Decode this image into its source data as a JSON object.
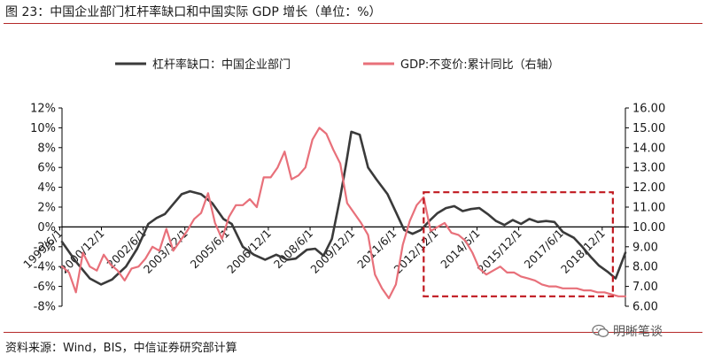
{
  "title": "图 23：中国企业部门杠杆率缺口和中国实际 GDP 增长（单位：%）",
  "source": "资料来源：Wind，BIS，中信证券研究部计算",
  "watermark": {
    "text": "明晰笔谈",
    "icon": "wechat-icon"
  },
  "colors": {
    "gap": "#3a3a3a",
    "gdp": "#e8707a",
    "rule": "#b52a2a",
    "box": "#c0181f"
  },
  "chart_data": {
    "type": "line",
    "title": "",
    "xlabel": "",
    "ylabel": "",
    "legend_position": "top",
    "x_ticks": [
      "1999/6/1",
      "2000/12/1",
      "2002/6/1",
      "2003/12/1",
      "2005/6/1",
      "2006/12/1",
      "2008/6/1",
      "2009/12/1",
      "2011/6/1",
      "2012/12/1",
      "2014/6/1",
      "2015/12/1",
      "2017/6/1",
      "2018/12/1"
    ],
    "x_range": [
      1999.5,
      2019.75
    ],
    "y_left": {
      "min": -8,
      "max": 12,
      "step": 2,
      "ticks": [
        "-8%",
        "-6%",
        "-4%",
        "-2%",
        "0%",
        "2%",
        "4%",
        "6%",
        "8%",
        "10%",
        "12%"
      ]
    },
    "y_right": {
      "min": 6,
      "max": 16,
      "step": 1,
      "ticks": [
        "6.00",
        "7.00",
        "8.00",
        "9.00",
        "10.00",
        "11.00",
        "12.00",
        "13.00",
        "14.00",
        "15.00",
        "16.00"
      ]
    },
    "series": [
      {
        "name": "杠杆率缺口：中国企业部门",
        "axis": "left",
        "x": [
          1999.5,
          2000.0,
          2000.5,
          2000.9,
          2001.3,
          2001.8,
          2002.2,
          2002.6,
          2002.9,
          2003.2,
          2003.5,
          2003.8,
          2004.1,
          2004.5,
          2004.9,
          2005.3,
          2005.6,
          2006.0,
          2006.4,
          2006.8,
          2007.2,
          2007.6,
          2007.9,
          2008.3,
          2008.6,
          2008.9,
          2009.2,
          2009.5,
          2009.7,
          2009.9,
          2010.2,
          2010.5,
          2010.8,
          2011.2,
          2011.5,
          2011.8,
          2012.1,
          2012.4,
          2012.7,
          2013.0,
          2013.3,
          2013.6,
          2013.9,
          2014.2,
          2014.5,
          2014.8,
          2015.1,
          2015.4,
          2015.7,
          2016.0,
          2016.3,
          2016.6,
          2016.9,
          2017.2,
          2017.5,
          2017.9,
          2018.2,
          2018.5,
          2018.8,
          2019.1,
          2019.4,
          2019.75
        ],
        "values": [
          -1.5,
          -3.5,
          -5.2,
          -5.8,
          -5.3,
          -4.0,
          -2.2,
          0.3,
          0.9,
          1.3,
          2.3,
          3.3,
          3.6,
          3.3,
          2.4,
          0.8,
          0.3,
          -2.0,
          -2.8,
          -3.3,
          -2.8,
          -3.3,
          -3.2,
          -2.3,
          -2.2,
          -2.9,
          -1.2,
          3.0,
          6.2,
          9.6,
          9.3,
          6.0,
          4.8,
          3.3,
          1.5,
          -0.3,
          -0.7,
          -0.3,
          0.6,
          1.4,
          1.9,
          2.1,
          1.6,
          1.8,
          1.9,
          1.3,
          0.6,
          0.2,
          0.7,
          0.3,
          0.8,
          0.5,
          0.6,
          0.5,
          -0.5,
          -1.1,
          -2.0,
          -3.0,
          -3.9,
          -4.5,
          -5.2,
          -2.6
        ]
      },
      {
        "name": "GDP:不变价:累计同比（右轴）",
        "axis": "right",
        "x": [
          1999.5,
          1999.75,
          2000.0,
          2000.25,
          2000.5,
          2000.75,
          2001.0,
          2001.25,
          2001.5,
          2001.75,
          2002.0,
          2002.25,
          2002.5,
          2002.75,
          2003.0,
          2003.25,
          2003.5,
          2003.75,
          2004.0,
          2004.25,
          2004.5,
          2004.75,
          2005.0,
          2005.25,
          2005.5,
          2005.75,
          2006.0,
          2006.25,
          2006.5,
          2006.75,
          2007.0,
          2007.25,
          2007.5,
          2007.75,
          2008.0,
          2008.25,
          2008.5,
          2008.75,
          2009.0,
          2009.25,
          2009.5,
          2009.75,
          2010.0,
          2010.25,
          2010.5,
          2010.75,
          2011.0,
          2011.25,
          2011.5,
          2011.75,
          2012.0,
          2012.25,
          2012.5,
          2012.75,
          2013.0,
          2013.25,
          2013.5,
          2013.75,
          2014.0,
          2014.25,
          2014.5,
          2014.75,
          2015.0,
          2015.25,
          2015.5,
          2015.75,
          2016.0,
          2016.25,
          2016.5,
          2016.75,
          2017.0,
          2017.25,
          2017.5,
          2017.75,
          2018.0,
          2018.25,
          2018.5,
          2018.75,
          2019.0,
          2019.25,
          2019.5,
          2019.75
        ],
        "values": [
          8.0,
          7.7,
          6.7,
          8.7,
          8.0,
          7.8,
          8.6,
          8.1,
          7.8,
          7.3,
          7.9,
          8.0,
          8.4,
          9.0,
          8.8,
          9.9,
          8.8,
          9.3,
          9.8,
          10.4,
          10.7,
          11.7,
          10.2,
          9.4,
          10.5,
          11.1,
          11.1,
          11.4,
          11.0,
          12.5,
          12.5,
          13.0,
          13.8,
          12.4,
          12.6,
          13.0,
          14.4,
          15.0,
          14.7,
          13.9,
          13.2,
          11.2,
          10.7,
          10.2,
          9.6,
          7.6,
          6.9,
          6.4,
          7.1,
          9.1,
          10.3,
          11.1,
          11.5,
          9.8,
          10.0,
          10.2,
          9.7,
          9.6,
          9.3,
          8.7,
          7.9,
          7.6,
          7.8,
          8.0,
          7.7,
          7.7,
          7.5,
          7.4,
          7.3,
          7.1,
          7.0,
          7.0,
          6.9,
          6.9,
          6.9,
          6.8,
          6.8,
          6.7,
          6.7,
          6.6,
          6.5,
          6.5
        ]
      }
    ],
    "highlight_box": {
      "x": [
        2012.5,
        2019.3
      ],
      "y_left": [
        -7.0,
        3.5
      ]
    }
  }
}
